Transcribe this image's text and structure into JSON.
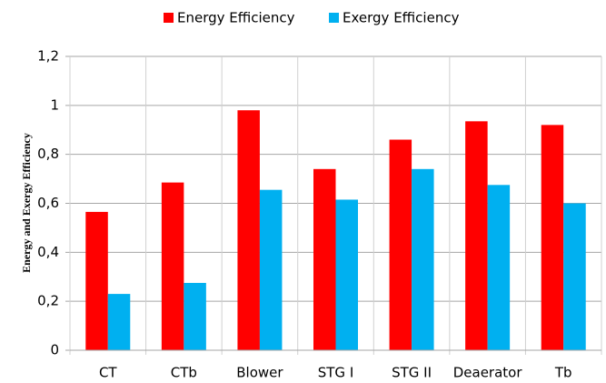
{
  "chart_data": {
    "type": "bar",
    "y_label": "Energy and Exergy Efficiency",
    "categories": [
      "CT",
      "CTb",
      "Blower",
      "STG I",
      "STG II",
      "Deaerator",
      "Tb"
    ],
    "series": [
      {
        "name": "Energy Efficiency",
        "color": "#ff0000",
        "values": [
          0.565,
          0.685,
          0.98,
          0.74,
          0.86,
          0.935,
          0.92
        ]
      },
      {
        "name": "Exergy Efficiency",
        "color": "#00b0f0",
        "values": [
          0.23,
          0.275,
          0.655,
          0.615,
          0.74,
          0.675,
          0.6
        ]
      }
    ],
    "ylim": [
      0,
      1.2
    ],
    "yticks": [
      0,
      {
        "value": 0.2,
        "label": "0,2"
      },
      {
        "value": 0.4,
        "label": "0,4"
      },
      {
        "value": 0.6,
        "label": "0,6"
      },
      {
        "value": 0.8,
        "label": "0,8"
      },
      1,
      {
        "value": 1.2,
        "label": "1,2"
      }
    ],
    "grid": true,
    "legend": "top"
  }
}
